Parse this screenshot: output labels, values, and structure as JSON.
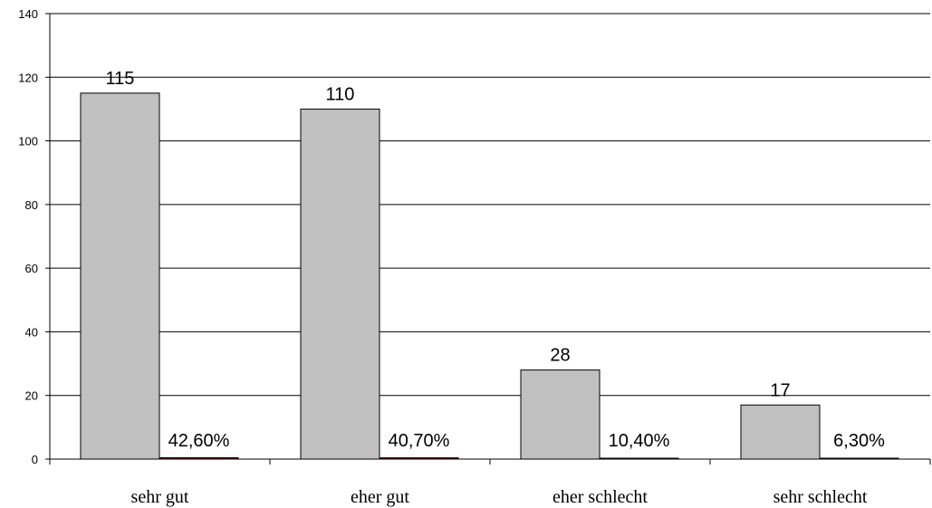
{
  "chart_data": {
    "type": "bar",
    "categories": [
      "sehr gut",
      "eher gut",
      "eher schlecht",
      "sehr schlecht"
    ],
    "series": [
      {
        "values": [
          115,
          110,
          28,
          17
        ],
        "labels": [
          "115",
          "110",
          "28",
          "17"
        ],
        "color": "#c0c0c0"
      },
      {
        "values": [
          0.426,
          0.407,
          0.104,
          0.063
        ],
        "labels": [
          "42,60%",
          "40,70%",
          "10,40%",
          "6,30%"
        ],
        "color": "#800000"
      }
    ],
    "yticks": [
      "0",
      "20",
      "40",
      "60",
      "80",
      "100",
      "120",
      "140"
    ],
    "ylim": [
      0,
      140
    ],
    "grid": true,
    "legend": "none"
  }
}
